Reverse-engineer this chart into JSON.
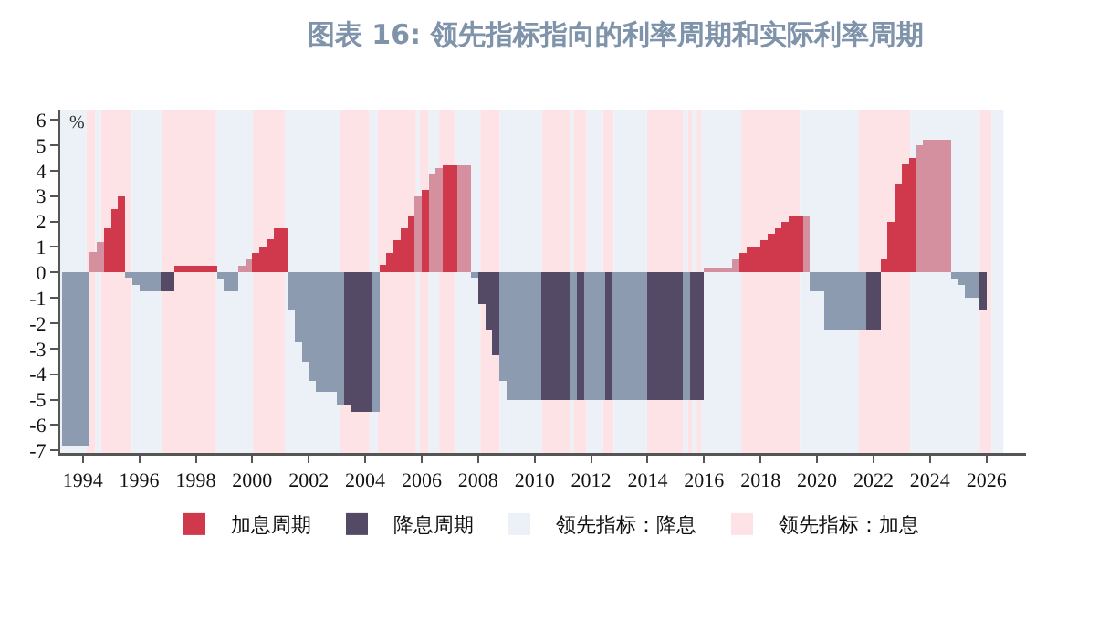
{
  "chart_data": {
    "type": "bar",
    "title": "图表 16: 领先指标指向的利率周期和实际利率周期",
    "ylabel": "%",
    "xlim": [
      1993.2,
      2027.4
    ],
    "ylim": [
      -7.1,
      6.4
    ],
    "xticks": [
      1994,
      1996,
      1998,
      2000,
      2002,
      2004,
      2006,
      2008,
      2010,
      2012,
      2014,
      2016,
      2018,
      2020,
      2022,
      2024,
      2026
    ],
    "yticks": [
      -7,
      -6,
      -5,
      -4,
      -3,
      -2,
      -1,
      0,
      1,
      2,
      3,
      4,
      5,
      6
    ],
    "legend": "bottom",
    "x": [
      1993.375,
      1993.625,
      1993.875,
      1994.125,
      1994.375,
      1994.625,
      1994.875,
      1995.125,
      1995.375,
      1995.625,
      1995.875,
      1996.125,
      1996.375,
      1996.625,
      1996.875,
      1997.125,
      1997.375,
      1997.625,
      1997.875,
      1998.125,
      1998.375,
      1998.625,
      1998.875,
      1999.125,
      1999.375,
      1999.625,
      1999.875,
      2000.125,
      2000.375,
      2000.625,
      2000.875,
      2001.125,
      2001.375,
      2001.625,
      2001.875,
      2002.125,
      2002.375,
      2002.625,
      2002.875,
      2003.125,
      2003.375,
      2003.625,
      2003.875,
      2004.125,
      2004.375,
      2004.625,
      2004.875,
      2005.125,
      2005.375,
      2005.625,
      2005.875,
      2006.125,
      2006.375,
      2006.625,
      2006.875,
      2007.125,
      2007.375,
      2007.625,
      2007.875,
      2008.125,
      2008.375,
      2008.625,
      2008.875,
      2009.125,
      2009.375,
      2009.625,
      2009.875,
      2010.125,
      2010.375,
      2010.625,
      2010.875,
      2011.125,
      2011.375,
      2011.625,
      2011.875,
      2012.125,
      2012.375,
      2012.625,
      2012.875,
      2013.125,
      2013.375,
      2013.625,
      2013.875,
      2014.125,
      2014.375,
      2014.625,
      2014.875,
      2015.125,
      2015.375,
      2015.625,
      2015.875,
      2016.125,
      2016.375,
      2016.625,
      2016.875,
      2017.125,
      2017.375,
      2017.625,
      2017.875,
      2018.125,
      2018.375,
      2018.625,
      2018.875,
      2019.125,
      2019.375,
      2019.625,
      2019.875,
      2020.125,
      2020.375,
      2020.625,
      2020.875,
      2021.125,
      2021.375,
      2021.625,
      2021.875,
      2022.125,
      2022.375,
      2022.625,
      2022.875,
      2023.125,
      2023.375,
      2023.625,
      2023.875,
      2024.125,
      2024.375,
      2024.625,
      2024.875,
      2025.125,
      2025.375,
      2025.625,
      2025.875
    ],
    "series": [
      {
        "name": "加息周期",
        "color": "#d0384c",
        "values": [
          null,
          null,
          null,
          null,
          0.8,
          1.2,
          1.75,
          2.5,
          3.0,
          null,
          null,
          null,
          null,
          null,
          null,
          null,
          0.25,
          0.25,
          0.25,
          0.25,
          0.25,
          0.25,
          null,
          null,
          null,
          0.25,
          0.5,
          0.75,
          1.0,
          1.3,
          1.75,
          1.75,
          null,
          null,
          null,
          null,
          null,
          null,
          null,
          null,
          null,
          null,
          null,
          null,
          null,
          0.3,
          0.75,
          1.25,
          1.75,
          2.25,
          3.0,
          3.25,
          3.9,
          4.1,
          4.2,
          4.2,
          4.2,
          4.2,
          null,
          null,
          null,
          null,
          null,
          null,
          null,
          null,
          null,
          null,
          null,
          null,
          null,
          null,
          null,
          null,
          null,
          null,
          null,
          null,
          null,
          null,
          null,
          null,
          null,
          null,
          null,
          null,
          null,
          null,
          null,
          null,
          null,
          0.2,
          0.2,
          0.2,
          0.2,
          0.5,
          0.75,
          1.0,
          1.0,
          1.25,
          1.5,
          1.75,
          2.0,
          2.25,
          2.25,
          2.25,
          null,
          null,
          null,
          null,
          null,
          null,
          null,
          null,
          null,
          null,
          0.5,
          2.0,
          3.5,
          4.25,
          4.5,
          5.0,
          5.2,
          5.2,
          5.2,
          5.2,
          null,
          null,
          null,
          null,
          null
        ],
        "colors": [
          null,
          null,
          null,
          null,
          "#d4909f",
          "#d4909f",
          "#d0384c",
          "#d0384c",
          "#d0384c",
          null,
          null,
          null,
          null,
          null,
          null,
          null,
          "#d0384c",
          "#d0384c",
          "#d0384c",
          "#d0384c",
          "#d0384c",
          "#d0384c",
          null,
          null,
          null,
          "#d4909f",
          "#d4909f",
          "#d0384c",
          "#d0384c",
          "#d0384c",
          "#d0384c",
          "#d0384c",
          null,
          null,
          null,
          null,
          null,
          null,
          null,
          null,
          null,
          null,
          null,
          null,
          null,
          "#d0384c",
          "#d0384c",
          "#d0384c",
          "#d0384c",
          "#d0384c",
          "#d4909f",
          "#d0384c",
          "#d4909f",
          "#d4909f",
          "#d0384c",
          "#d0384c",
          "#d4909f",
          "#d4909f",
          null,
          null,
          null,
          null,
          null,
          null,
          null,
          null,
          null,
          null,
          null,
          null,
          null,
          null,
          null,
          null,
          null,
          null,
          null,
          null,
          null,
          null,
          null,
          null,
          null,
          null,
          null,
          null,
          null,
          null,
          null,
          null,
          null,
          "#d4909f",
          "#d4909f",
          "#d4909f",
          "#d4909f",
          "#d4909f",
          "#d0384c",
          "#d0384c",
          "#d0384c",
          "#d0384c",
          "#d0384c",
          "#d0384c",
          "#d0384c",
          "#d0384c",
          "#d0384c",
          "#d4909f",
          null,
          null,
          null,
          null,
          null,
          null,
          null,
          null,
          null,
          null,
          "#d0384c",
          "#d0384c",
          "#d0384c",
          "#d0384c",
          "#d0384c",
          "#d4909f",
          "#d4909f",
          "#d4909f",
          "#d4909f",
          "#d4909f",
          null,
          null,
          null,
          null,
          null
        ]
      },
      {
        "name": "降息周期",
        "color": "#544a66",
        "values": [
          -6.8,
          -6.8,
          -6.8,
          -6.8,
          null,
          null,
          null,
          null,
          null,
          -0.2,
          -0.5,
          -0.75,
          -0.75,
          -0.75,
          -0.75,
          -0.75,
          null,
          null,
          null,
          null,
          null,
          null,
          -0.25,
          -0.75,
          -0.75,
          null,
          null,
          null,
          null,
          null,
          null,
          null,
          -1.5,
          -2.75,
          -3.5,
          -4.25,
          -4.7,
          -4.7,
          -4.7,
          -5.2,
          -5.2,
          -5.5,
          -5.5,
          -5.5,
          -5.5,
          null,
          null,
          null,
          null,
          null,
          null,
          null,
          null,
          null,
          null,
          null,
          null,
          null,
          -0.2,
          -1.25,
          -2.25,
          -3.25,
          -4.25,
          -5.0,
          -5.0,
          -5.0,
          -5.0,
          -5.0,
          -5.0,
          -5.0,
          -5.0,
          -5.0,
          -5.0,
          -5.0,
          -5.0,
          -5.0,
          -5.0,
          -5.0,
          -5.0,
          -5.0,
          -5.0,
          -5.0,
          -5.0,
          -5.0,
          -5.0,
          -5.0,
          -5.0,
          -5.0,
          -5.0,
          -5.0,
          -5.0,
          null,
          null,
          null,
          null,
          null,
          null,
          null,
          null,
          null,
          null,
          null,
          null,
          null,
          null,
          null,
          -0.75,
          -0.75,
          -2.25,
          -2.25,
          -2.25,
          -2.25,
          -2.25,
          -2.25,
          -2.25,
          -2.25,
          null,
          null,
          null,
          null,
          null,
          null,
          null,
          null,
          null,
          null,
          -0.25,
          -0.5,
          -1.0,
          -1.0,
          -1.5
        ],
        "colors": [
          "#8c9bb0",
          "#8c9bb0",
          "#8c9bb0",
          "#8c9bb0",
          null,
          null,
          null,
          null,
          null,
          "#8c9bb0",
          "#8c9bb0",
          "#8c9bb0",
          "#8c9bb0",
          "#8c9bb0",
          "#544a66",
          "#544a66",
          null,
          null,
          null,
          null,
          null,
          null,
          "#8c9bb0",
          "#8c9bb0",
          "#8c9bb0",
          null,
          null,
          null,
          null,
          null,
          null,
          null,
          "#8c9bb0",
          "#8c9bb0",
          "#8c9bb0",
          "#8c9bb0",
          "#8c9bb0",
          "#8c9bb0",
          "#8c9bb0",
          "#8c9bb0",
          "#544a66",
          "#544a66",
          "#544a66",
          "#544a66",
          "#8c9bb0",
          null,
          null,
          null,
          null,
          null,
          null,
          null,
          null,
          null,
          null,
          null,
          null,
          null,
          "#8c9bb0",
          "#544a66",
          "#544a66",
          "#544a66",
          "#8c9bb0",
          "#8c9bb0",
          "#8c9bb0",
          "#8c9bb0",
          "#8c9bb0",
          "#8c9bb0",
          "#544a66",
          "#544a66",
          "#544a66",
          "#544a66",
          "#8c9bb0",
          "#544a66",
          "#8c9bb0",
          "#8c9bb0",
          "#8c9bb0",
          "#544a66",
          "#8c9bb0",
          "#8c9bb0",
          "#8c9bb0",
          "#8c9bb0",
          "#8c9bb0",
          "#544a66",
          "#544a66",
          "#544a66",
          "#544a66",
          "#544a66",
          "#8c9bb0",
          "#544a66",
          "#544a66",
          null,
          null,
          null,
          null,
          null,
          null,
          null,
          null,
          null,
          null,
          null,
          null,
          null,
          null,
          null,
          "#8c9bb0",
          "#8c9bb0",
          "#8c9bb0",
          "#8c9bb0",
          "#8c9bb0",
          "#8c9bb0",
          "#8c9bb0",
          "#8c9bb0",
          "#544a66",
          "#544a66",
          "#544a66",
          null,
          null,
          null,
          null,
          null,
          null,
          null,
          null,
          null,
          "#8c9bb0",
          "#8c9bb0",
          "#8c9bb0",
          "#8c9bb0",
          "#544a66"
        ]
      }
    ],
    "bands": [
      {
        "axis": "x",
        "from": 1993.2,
        "to": 1994.13,
        "label": "领先指标：降息",
        "color": "#ecf0f7"
      },
      {
        "axis": "x",
        "from": 1994.13,
        "to": 1994.45,
        "label": "领先指标：加息",
        "color": "#fde3e5"
      },
      {
        "axis": "x",
        "from": 1994.45,
        "to": 1994.64,
        "color": "#ecf0f7"
      },
      {
        "axis": "x",
        "from": 1994.64,
        "to": 1995.74,
        "color": "#fde3e5"
      },
      {
        "axis": "x",
        "from": 1995.74,
        "to": 1996.79,
        "color": "#ecf0f7"
      },
      {
        "axis": "x",
        "from": 1996.79,
        "to": 1998.72,
        "color": "#fde3e5"
      },
      {
        "axis": "x",
        "from": 1998.72,
        "to": 2000.03,
        "color": "#ecf0f7"
      },
      {
        "axis": "x",
        "from": 2000.03,
        "to": 2001.15,
        "color": "#fde3e5"
      },
      {
        "axis": "x",
        "from": 2001.15,
        "to": 2003.1,
        "color": "#ecf0f7"
      },
      {
        "axis": "x",
        "from": 2003.1,
        "to": 2004.15,
        "color": "#fde3e5"
      },
      {
        "axis": "x",
        "from": 2004.15,
        "to": 2004.45,
        "color": "#ecf0f7"
      },
      {
        "axis": "x",
        "from": 2004.45,
        "to": 2005.8,
        "color": "#fde3e5"
      },
      {
        "axis": "x",
        "from": 2005.8,
        "to": 2005.93,
        "color": "#ecf0f7"
      },
      {
        "axis": "x",
        "from": 2005.93,
        "to": 2006.25,
        "color": "#fde3e5"
      },
      {
        "axis": "x",
        "from": 2006.25,
        "to": 2006.62,
        "color": "#ecf0f7"
      },
      {
        "axis": "x",
        "from": 2006.62,
        "to": 2007.16,
        "color": "#fde3e5"
      },
      {
        "axis": "x",
        "from": 2007.16,
        "to": 2008.08,
        "color": "#ecf0f7"
      },
      {
        "axis": "x",
        "from": 2008.08,
        "to": 2008.77,
        "color": "#fde3e5"
      },
      {
        "axis": "x",
        "from": 2008.77,
        "to": 2010.27,
        "color": "#ecf0f7"
      },
      {
        "axis": "x",
        "from": 2010.27,
        "to": 2011.24,
        "color": "#fde3e5"
      },
      {
        "axis": "x",
        "from": 2011.24,
        "to": 2011.39,
        "color": "#ecf0f7"
      },
      {
        "axis": "x",
        "from": 2011.39,
        "to": 2011.84,
        "color": "#fde3e5"
      },
      {
        "axis": "x",
        "from": 2011.84,
        "to": 2012.42,
        "color": "#ecf0f7"
      },
      {
        "axis": "x",
        "from": 2012.42,
        "to": 2012.8,
        "color": "#fde3e5"
      },
      {
        "axis": "x",
        "from": 2012.8,
        "to": 2013.98,
        "color": "#ecf0f7"
      },
      {
        "axis": "x",
        "from": 2013.98,
        "to": 2015.25,
        "color": "#fde3e5"
      },
      {
        "axis": "x",
        "from": 2015.25,
        "to": 2015.42,
        "color": "#ecf0f7"
      },
      {
        "axis": "x",
        "from": 2015.42,
        "to": 2015.57,
        "color": "#fde3e5"
      },
      {
        "axis": "x",
        "from": 2015.57,
        "to": 2015.74,
        "color": "#ecf0f7"
      },
      {
        "axis": "x",
        "from": 2015.74,
        "to": 2015.89,
        "color": "#fde3e5"
      },
      {
        "axis": "x",
        "from": 2015.89,
        "to": 2017.31,
        "color": "#ecf0f7"
      },
      {
        "axis": "x",
        "from": 2017.31,
        "to": 2019.39,
        "color": "#fde3e5"
      },
      {
        "axis": "x",
        "from": 2019.39,
        "to": 2021.48,
        "color": "#ecf0f7"
      },
      {
        "axis": "x",
        "from": 2021.48,
        "to": 2023.3,
        "color": "#fde3e5"
      },
      {
        "axis": "x",
        "from": 2023.3,
        "to": 2025.76,
        "color": "#ecf0f7"
      },
      {
        "axis": "x",
        "from": 2025.76,
        "to": 2026.18,
        "color": "#fde3e5"
      },
      {
        "axis": "x",
        "from": 2026.18,
        "to": 2026.6,
        "color": "#ecf0f7"
      }
    ]
  }
}
